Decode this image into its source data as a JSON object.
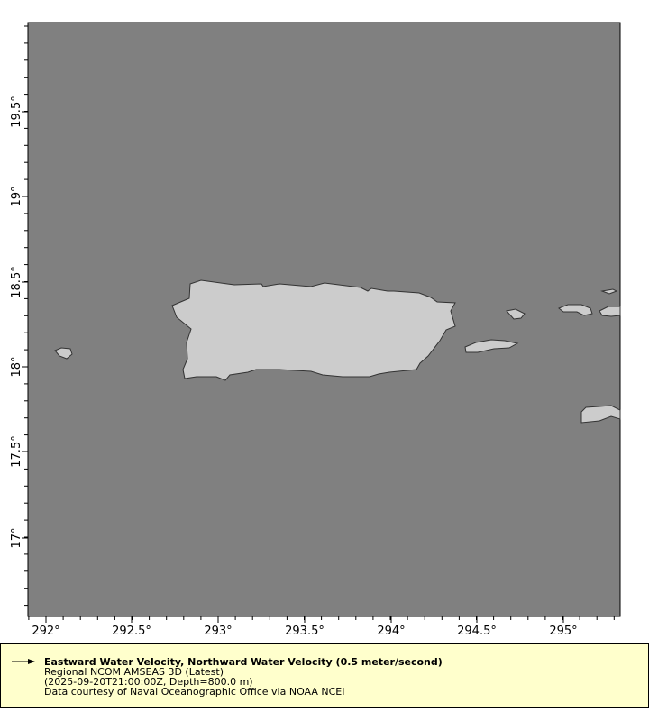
{
  "map": {
    "ocean_color": "#808080",
    "land_color": "#cccccc",
    "coast_color": "#333333",
    "x_ticks": [
      "292°",
      "292.5°",
      "293°",
      "293.5°",
      "294°",
      "294.5°",
      "295°"
    ],
    "y_ticks": [
      "19.5°",
      "19°",
      "18.5°",
      "18°",
      "17.5°",
      "17°"
    ]
  },
  "legend": {
    "icon": "vector-arrow-icon",
    "title": "Eastward Water Velocity, Northward Water Velocity (0.5 meter/second)",
    "dataset": "Regional NCOM AMSEAS 3D (Latest)",
    "time_depth": "(2025-09-20T21:00:00Z, Depth=800.0 m)",
    "credit": "Data courtesy of Naval Oceanographic Office via NOAA NCEI"
  }
}
